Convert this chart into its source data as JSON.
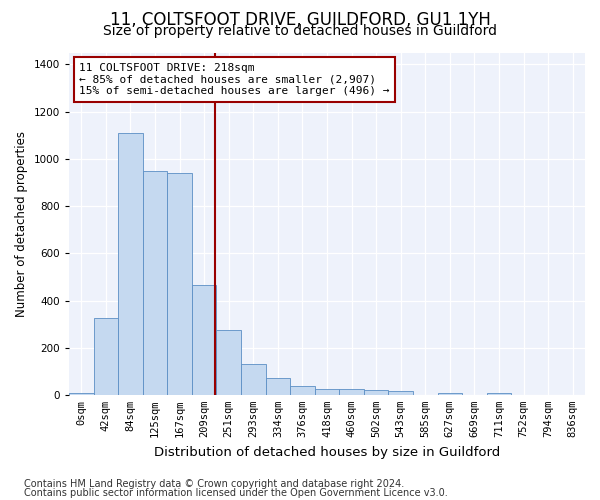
{
  "title": "11, COLTSFOOT DRIVE, GUILDFORD, GU1 1YH",
  "subtitle": "Size of property relative to detached houses in Guildford",
  "xlabel": "Distribution of detached houses by size in Guildford",
  "ylabel": "Number of detached properties",
  "bar_color": "#c5d9f0",
  "bar_edge_color": "#5b8ec4",
  "categories": [
    "0sqm",
    "42sqm",
    "84sqm",
    "125sqm",
    "167sqm",
    "209sqm",
    "251sqm",
    "293sqm",
    "334sqm",
    "376sqm",
    "418sqm",
    "460sqm",
    "502sqm",
    "543sqm",
    "585sqm",
    "627sqm",
    "669sqm",
    "711sqm",
    "752sqm",
    "794sqm",
    "836sqm"
  ],
  "values": [
    10,
    325,
    1110,
    950,
    940,
    465,
    275,
    130,
    70,
    40,
    25,
    25,
    20,
    15,
    0,
    8,
    0,
    8,
    0,
    0,
    0
  ],
  "ylim": [
    0,
    1450
  ],
  "yticks": [
    0,
    200,
    400,
    600,
    800,
    1000,
    1200,
    1400
  ],
  "vline_x_idx": 5.45,
  "vline_color": "#990000",
  "annotation_text": "11 COLTSFOOT DRIVE: 218sqm\n← 85% of detached houses are smaller (2,907)\n15% of semi-detached houses are larger (496) →",
  "annotation_box_color": "#ffffff",
  "annotation_box_edge": "#990000",
  "footer_line1": "Contains HM Land Registry data © Crown copyright and database right 2024.",
  "footer_line2": "Contains public sector information licensed under the Open Government Licence v3.0.",
  "bg_color": "#eef2fb",
  "grid_color": "#ffffff",
  "title_fontsize": 12,
  "subtitle_fontsize": 10,
  "xlabel_fontsize": 9.5,
  "ylabel_fontsize": 8.5,
  "tick_fontsize": 7.5,
  "footer_fontsize": 7,
  "annot_fontsize": 8
}
